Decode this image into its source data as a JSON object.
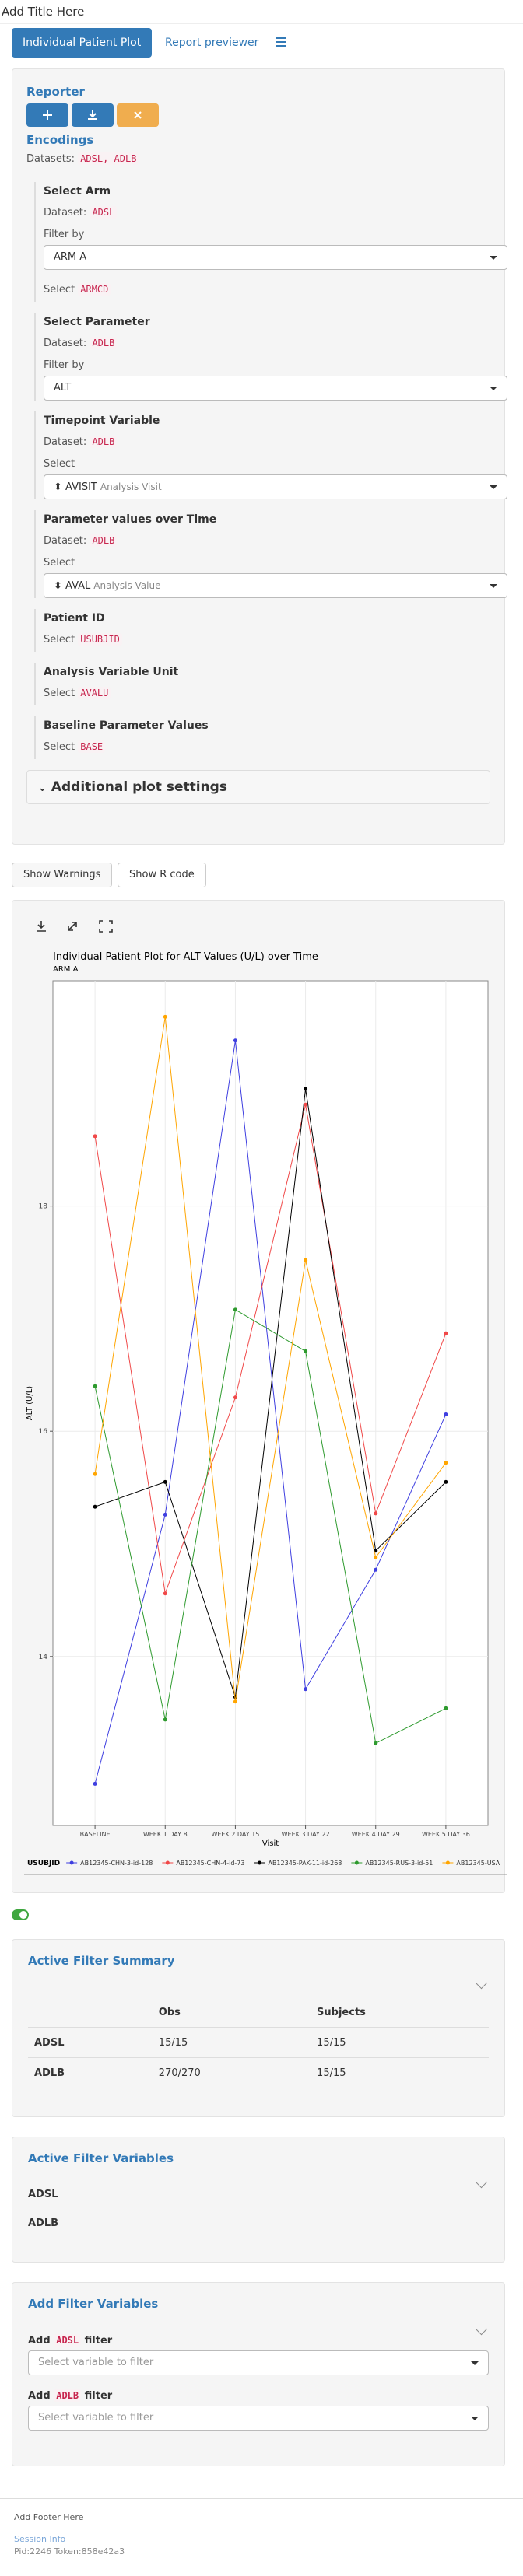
{
  "header": {
    "title": "Add Title Here"
  },
  "tabs": [
    "Individual Patient Plot",
    "Report previewer"
  ],
  "sidebar": {
    "reporter": "Reporter",
    "encodings": "Encodings",
    "datasets_label": "Datasets:",
    "datasets": "ADSL, ADLB",
    "sections": [
      {
        "title": "Select Arm",
        "dataset_label": "Dataset:",
        "dataset": "ADSL",
        "filter_label": "Filter by",
        "filter_value": "ARM A",
        "select_label": "Select",
        "select_value": "ARMCD"
      },
      {
        "title": "Select Parameter",
        "dataset_label": "Dataset:",
        "dataset": "ADLB",
        "filter_label": "Filter by",
        "filter_value": "ALT"
      },
      {
        "title": "Timepoint Variable",
        "dataset_label": "Dataset:",
        "dataset": "ADLB",
        "select_label": "Select",
        "select_value": "AVISIT",
        "select_description": "Analysis Visit"
      },
      {
        "title": "Parameter values over Time",
        "dataset_label": "Dataset:",
        "dataset": "ADLB",
        "select_label": "Select",
        "select_value": "AVAL",
        "select_description": "Analysis Value"
      },
      {
        "title": "Patient ID",
        "select_label": "Select",
        "select_value": "USUBJID"
      },
      {
        "title": "Analysis Variable Unit",
        "select_label": "Select",
        "select_value": "AVALU"
      },
      {
        "title": "Baseline Parameter Values",
        "select_label": "Select",
        "select_value": "BASE"
      }
    ],
    "additional": "Additional plot settings"
  },
  "buttons": [
    "Show Warnings",
    "Show R code"
  ],
  "chart_data": {
    "type": "line",
    "title": "Individual Patient Plot for ALT Values (U/L) over Time",
    "subtitle": "ARM A",
    "x_label": "Visit",
    "y_label": "ALT (U/L)",
    "legend_title": "USUBJID",
    "legend": "bottom",
    "grid": true,
    "categories": [
      "BASELINE",
      "WEEK 1 DAY 8",
      "WEEK 2 DAY 15",
      "WEEK 3 DAY 22",
      "WEEK 4 DAY 29",
      "WEEK 5 DAY 36"
    ],
    "ylim": [
      12.5,
      20
    ],
    "yticks": [
      14,
      16,
      18
    ],
    "series": [
      {
        "name": "AB12345-CHN-3-id-128",
        "color": "#3f3fe0",
        "values": [
          12.87,
          15.26,
          19.47,
          13.71,
          14.77,
          16.15
        ]
      },
      {
        "name": "AB12345-CHN-4-id-73",
        "color": "#f04848",
        "values": [
          18.62,
          14.56,
          16.3,
          18.9,
          15.27,
          16.87
        ]
      },
      {
        "name": "AB12345-PAK-11-id-268",
        "color": "#000000",
        "values": [
          15.33,
          15.55,
          13.64,
          19.04,
          14.94,
          15.55
        ]
      },
      {
        "name": "AB12345-RUS-3-id-51",
        "color": "#2e9a2e",
        "values": [
          16.4,
          13.44,
          17.08,
          16.71,
          13.23,
          13.54
        ]
      },
      {
        "name": "AB12345-USA",
        "color": "#ffa500",
        "values": [
          15.62,
          19.68,
          13.6,
          17.52,
          14.88,
          15.72
        ]
      }
    ]
  },
  "filters": {
    "summary": {
      "title": "Active Filter Summary",
      "columns": [
        "Obs",
        "Subjects"
      ],
      "rows": [
        [
          "ADSL",
          "15/15",
          "15/15"
        ],
        [
          "ADLB",
          "270/270",
          "15/15"
        ]
      ]
    },
    "variables": {
      "title": "Active Filter Variables",
      "datasets": [
        "ADSL",
        "ADLB"
      ]
    },
    "add": {
      "title": "Add Filter Variables",
      "items": [
        {
          "prefix": "Add",
          "dataset": "ADSL",
          "suffix": "filter",
          "placeholder": "Select variable to filter"
        },
        {
          "prefix": "Add",
          "dataset": "ADLB",
          "suffix": "filter",
          "placeholder": "Select variable to filter"
        }
      ]
    }
  },
  "footer": {
    "text": "Add Footer Here",
    "session": "Session Info",
    "pid": "Pid:2246 Token:858e42a3"
  }
}
